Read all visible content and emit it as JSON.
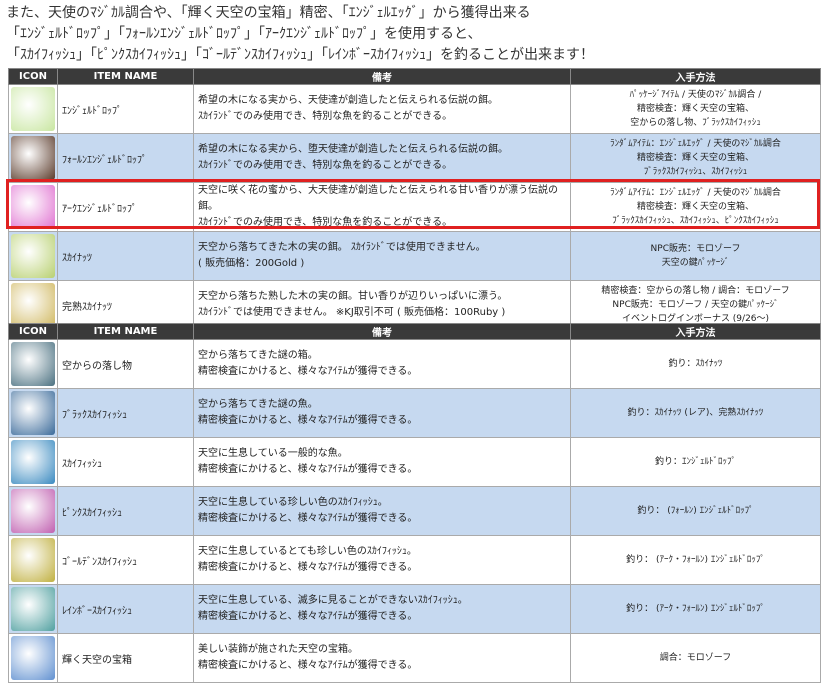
{
  "intro": [
    "また、天使のﾏｼﾞｶﾙ調合や、「輝く天空の宝箱」精密、「ｴﾝｼﾞｪﾙｴｯｸﾞ」から獲得出来る",
    "「ｴﾝｼﾞｪﾙﾄﾞﾛｯﾌﾟ」「ﾌｫｰﾙﾝｴﾝｼﾞｪﾙﾄﾞﾛｯﾌﾟ」「ｱｰｸｴﾝｼﾞｪﾙﾄﾞﾛｯﾌﾟ」を使用すると、",
    "「ｽｶｲﾌｨｯｼｭ」「ﾋﾟﾝｸｽｶｲﾌｨｯｼｭ」「ｺﾞｰﾙﾃﾞﾝｽｶｲﾌｨｯｼｭ」「ﾚｲﾝﾎﾞｰｽｶｲﾌｨｯｼｭ」を釣ることが出来ます！"
  ],
  "headers": {
    "icon": "ICON",
    "name": "ITEM NAME",
    "desc": "備考",
    "method": "入手方法"
  },
  "table1": [
    {
      "icon": "angel-drop-icon",
      "color": "#c8e6a0",
      "name": "ｴﾝｼﾞｪﾙﾄﾞﾛｯﾌﾟ",
      "desc": [
        "希望の木になる実から、天使達が創造したと伝えられる伝説の餌。",
        "ｽｶｲﾗﾝﾄﾞでのみ使用でき、特別な魚を釣ることができる。"
      ],
      "method": [
        "ﾊﾟｯｹｰｼﾞｱｲﾃﾑ / 天使のﾏｼﾞｶﾙ調合 /",
        "精密検査：輝く天空の宝箱、",
        "空からの落し物、ﾌﾞﾗｯｸｽｶｲﾌｨｯｼｭ"
      ]
    },
    {
      "icon": "fallen-angel-drop-icon",
      "color": "#5a3a2a",
      "name": "ﾌｫｰﾙﾝｴﾝｼﾞｪﾙﾄﾞﾛｯﾌﾟ",
      "desc": [
        "希望の木になる実から、堕天使達が創造したと伝えられる伝説の餌。",
        "ｽｶｲﾗﾝﾄﾞでのみ使用でき、特別な魚を釣ることができる。"
      ],
      "method": [
        "ﾗﾝﾀﾞﾑｱｲﾃﾑ：ｴﾝｼﾞｪﾙｴｯｸﾞ / 天使のﾏｼﾞｶﾙ調合",
        "精密検査：輝く天空の宝箱、",
        "ﾌﾞﾗｯｸｽｶｲﾌｨｯｼｭ、ｽｶｲﾌｨｯｼｭ"
      ]
    },
    {
      "icon": "arc-angel-drop-icon",
      "color": "#e070d0",
      "name": "ｱｰｸｴﾝｼﾞｪﾙﾄﾞﾛｯﾌﾟ",
      "desc": [
        "天空に咲く花の蜜から、大天使達が創造したと伝えられる甘い香りが漂う伝説の餌。",
        "ｽｶｲﾗﾝﾄﾞでのみ使用でき、特別な魚を釣ることができる。"
      ],
      "method": [
        "ﾗﾝﾀﾞﾑｱｲﾃﾑ：ｴﾝｼﾞｪﾙｴｯｸﾞ / 天使のﾏｼﾞｶﾙ調合",
        "精密検査：輝く天空の宝箱、",
        "ﾌﾞﾗｯｸｽｶｲﾌｨｯｼｭ、ｽｶｲﾌｨｯｼｭ、ﾋﾟﾝｸｽｶｲﾌｨｯｼｭ"
      ]
    },
    {
      "icon": "sky-nut-icon",
      "color": "#b8d070",
      "name": "ｽｶｲﾅｯﾂ",
      "desc": [
        "天空から落ちてきた木の実の餌。 ｽｶｲﾗﾝﾄﾞでは使用できません。",
        "( 販売価格：200Gold )"
      ],
      "method": [
        "NPC販売：モロゾーフ",
        "天空の鍵ﾊﾟｯｹｰｼﾞ"
      ]
    },
    {
      "icon": "ripe-sky-nut-icon",
      "color": "#d0b860",
      "name": "完熟ｽｶｲﾅｯﾂ",
      "desc": [
        "天空から落ちた熟した木の実の餌。甘い香りが辺りいっぱいに漂う。",
        "ｽｶｲﾗﾝﾄﾞでは使用できません。 ※KJ取引不可 ( 販売価格：100Ruby )"
      ],
      "method": [
        "精密検査：空からの落し物 / 調合：モロゾーフ",
        "NPC販売：モロゾーフ / 天空の鍵ﾊﾟｯｹｰｼﾞ",
        "イベントログインボーナス (9/26～)"
      ]
    }
  ],
  "table2": [
    {
      "icon": "mystery-box-icon",
      "color": "#4a7080",
      "name": "空からの落し物",
      "desc": [
        "空から落ちてきた謎の箱。",
        "精密検査にかけると、様々なｱｲﾃﾑが獲得できる。"
      ],
      "method": [
        "釣り：ｽｶｲﾅｯﾂ"
      ]
    },
    {
      "icon": "black-skyfish-icon",
      "color": "#3a6a9a",
      "name": "ﾌﾞﾗｯｸｽｶｲﾌｨｯｼｭ",
      "desc": [
        "空から落ちてきた謎の魚。",
        "精密検査にかけると、様々なｱｲﾃﾑが獲得できる。"
      ],
      "method": [
        "釣り：ｽｶｲﾅｯﾂ (レア)、完熟ｽｶｲﾅｯﾂ"
      ]
    },
    {
      "icon": "skyfish-icon",
      "color": "#3a8ac0",
      "name": "ｽｶｲﾌｨｯｼｭ",
      "desc": [
        "天空に生息している一般的な魚。",
        "精密検査にかけると、様々なｱｲﾃﾑが獲得できる。"
      ],
      "method": [
        "釣り：ｴﾝｼﾞｪﾙﾄﾞﾛｯﾌﾟ"
      ]
    },
    {
      "icon": "pink-skyfish-icon",
      "color": "#c060b0",
      "name": "ﾋﾟﾝｸｽｶｲﾌｨｯｼｭ",
      "desc": [
        "天空に生息している珍しい色のｽｶｲﾌｨｯｼｭ。",
        "精密検査にかけると、様々なｱｲﾃﾑが獲得できる。"
      ],
      "method": [
        "釣り： (ﾌｫｰﾙﾝ) ｴﾝｼﾞｪﾙﾄﾞﾛｯﾌﾟ"
      ]
    },
    {
      "icon": "golden-skyfish-icon",
      "color": "#c0b040",
      "name": "ｺﾞｰﾙﾃﾞﾝｽｶｲﾌｨｯｼｭ",
      "desc": [
        "天空に生息しているとても珍しい色のｽｶｲﾌｨｯｼｭ。",
        "精密検査にかけると、様々なｱｲﾃﾑが獲得できる。"
      ],
      "method": [
        "釣り： (ｱｰｸ・ﾌｫｰﾙﾝ) ｴﾝｼﾞｪﾙﾄﾞﾛｯﾌﾟ"
      ]
    },
    {
      "icon": "rainbow-skyfish-icon",
      "color": "#50a0a0",
      "name": "ﾚｲﾝﾎﾞｰｽｶｲﾌｨｯｼｭ",
      "desc": [
        "天空に生息している、滅多に見ることができないｽｶｲﾌｨｯｼｭ。",
        "精密検査にかけると、様々なｱｲﾃﾑが獲得できる。"
      ],
      "method": [
        "釣り： (ｱｰｸ・ﾌｫｰﾙﾝ) ｴﾝｼﾞｪﾙﾄﾞﾛｯﾌﾟ"
      ]
    },
    {
      "icon": "shining-sky-chest-icon",
      "color": "#6090d0",
      "name": "輝く天空の宝箱",
      "desc": [
        "美しい装飾が施された天空の宝箱。",
        "精密検査にかけると、様々なｱｲﾃﾑが獲得できる。"
      ],
      "method": [
        "調合：モロゾーフ"
      ]
    }
  ],
  "highlight_row": 2,
  "highlight_color": "#e02020"
}
